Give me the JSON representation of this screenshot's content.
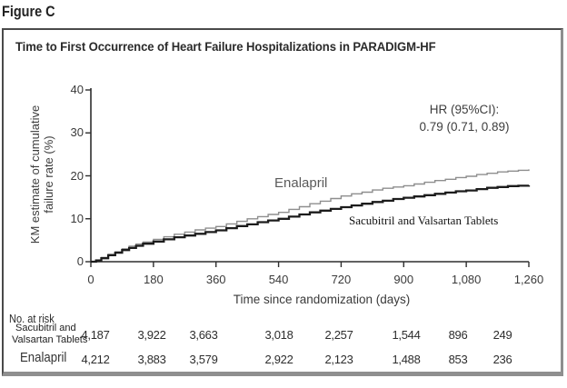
{
  "figure_label": "Figure C",
  "panel": {
    "title": "Time to First Occurrence of Heart Failure Hospitalizations in PARADIGM-HF"
  },
  "chart_data": {
    "type": "line",
    "subtype": "kaplan-meier-step",
    "title": "Time to First Occurrence of Heart Failure Hospitalizations in PARADIGM-HF",
    "xlabel": "Time since randomization (days)",
    "ylabel_line1": "KM estimate of cumulative",
    "ylabel_line2": "failure rate (%)",
    "xlim": [
      0,
      1260
    ],
    "ylim": [
      0,
      40
    ],
    "grid": false,
    "annotation": {
      "line1": "HR (95%CI):",
      "line2": "0.79 (0.71, 0.89)"
    },
    "x_ticks": [
      {
        "value": 0,
        "label": "0"
      },
      {
        "value": 180,
        "label": "180"
      },
      {
        "value": 360,
        "label": "360"
      },
      {
        "value": 540,
        "label": "540"
      },
      {
        "value": 720,
        "label": "720"
      },
      {
        "value": 900,
        "label": "900"
      },
      {
        "value": 1080,
        "label": "1,080"
      },
      {
        "value": 1260,
        "label": "1,260"
      }
    ],
    "y_ticks": [
      {
        "value": 0,
        "label": "0"
      },
      {
        "value": 10,
        "label": "10"
      },
      {
        "value": 20,
        "label": "20"
      },
      {
        "value": 30,
        "label": "30"
      },
      {
        "value": 40,
        "label": "40"
      }
    ],
    "series": [
      {
        "name": "Enalapril",
        "color": "#8e8e8e",
        "width": 1.4,
        "points": [
          [
            0,
            0
          ],
          [
            15,
            0.4
          ],
          [
            30,
            1.0
          ],
          [
            50,
            1.7
          ],
          [
            70,
            2.3
          ],
          [
            90,
            3.0
          ],
          [
            110,
            3.6
          ],
          [
            130,
            4.1
          ],
          [
            150,
            4.6
          ],
          [
            180,
            5.2
          ],
          [
            210,
            5.8
          ],
          [
            240,
            6.4
          ],
          [
            270,
            6.9
          ],
          [
            300,
            7.4
          ],
          [
            330,
            7.8
          ],
          [
            360,
            8.2
          ],
          [
            390,
            8.8
          ],
          [
            420,
            9.4
          ],
          [
            450,
            10.0
          ],
          [
            480,
            10.5
          ],
          [
            510,
            11.0
          ],
          [
            540,
            11.5
          ],
          [
            570,
            12.2
          ],
          [
            600,
            12.8
          ],
          [
            630,
            13.5
          ],
          [
            660,
            14.1
          ],
          [
            690,
            14.7
          ],
          [
            720,
            15.3
          ],
          [
            750,
            15.8
          ],
          [
            780,
            16.2
          ],
          [
            810,
            16.7
          ],
          [
            840,
            17.1
          ],
          [
            870,
            17.4
          ],
          [
            900,
            17.7
          ],
          [
            930,
            18.1
          ],
          [
            960,
            18.5
          ],
          [
            990,
            18.9
          ],
          [
            1020,
            19.2
          ],
          [
            1050,
            19.6
          ],
          [
            1080,
            19.9
          ],
          [
            1110,
            20.3
          ],
          [
            1140,
            20.6
          ],
          [
            1170,
            20.9
          ],
          [
            1200,
            21.1
          ],
          [
            1230,
            21.3
          ],
          [
            1260,
            21.5
          ]
        ]
      },
      {
        "name": "Sacubitril and Valsartan Tablets",
        "color": "#1c1c1c",
        "width": 2.3,
        "points": [
          [
            0,
            0
          ],
          [
            15,
            0.3
          ],
          [
            30,
            0.8
          ],
          [
            50,
            1.5
          ],
          [
            70,
            2.1
          ],
          [
            90,
            2.7
          ],
          [
            110,
            3.2
          ],
          [
            130,
            3.7
          ],
          [
            150,
            4.2
          ],
          [
            180,
            4.7
          ],
          [
            210,
            5.2
          ],
          [
            240,
            5.7
          ],
          [
            270,
            6.1
          ],
          [
            300,
            6.5
          ],
          [
            330,
            6.9
          ],
          [
            360,
            7.3
          ],
          [
            390,
            7.8
          ],
          [
            420,
            8.3
          ],
          [
            450,
            8.7
          ],
          [
            480,
            9.2
          ],
          [
            510,
            9.6
          ],
          [
            540,
            10.0
          ],
          [
            570,
            10.5
          ],
          [
            600,
            11.0
          ],
          [
            630,
            11.5
          ],
          [
            660,
            11.9
          ],
          [
            690,
            12.3
          ],
          [
            720,
            12.7
          ],
          [
            750,
            13.1
          ],
          [
            780,
            13.5
          ],
          [
            810,
            13.9
          ],
          [
            840,
            14.2
          ],
          [
            870,
            14.6
          ],
          [
            900,
            14.9
          ],
          [
            930,
            15.2
          ],
          [
            960,
            15.5
          ],
          [
            990,
            15.8
          ],
          [
            1020,
            16.1
          ],
          [
            1050,
            16.4
          ],
          [
            1080,
            16.6
          ],
          [
            1110,
            16.9
          ],
          [
            1140,
            17.2
          ],
          [
            1170,
            17.4
          ],
          [
            1200,
            17.6
          ],
          [
            1230,
            17.7
          ],
          [
            1260,
            17.8
          ]
        ]
      }
    ]
  },
  "risk_table": {
    "heading": "No. at risk",
    "rows": [
      {
        "label_lines": [
          "Sacubitril and",
          "Valsartan Tablets"
        ],
        "values": [
          "4,187",
          "3,922",
          "3,663",
          "3,018",
          "2,257",
          "1,544",
          "896",
          "249"
        ]
      },
      {
        "label_lines": [
          "Enalapril"
        ],
        "values": [
          "4,212",
          "3,883",
          "3,579",
          "2,922",
          "2,123",
          "1,488",
          "853",
          "236"
        ]
      }
    ]
  }
}
